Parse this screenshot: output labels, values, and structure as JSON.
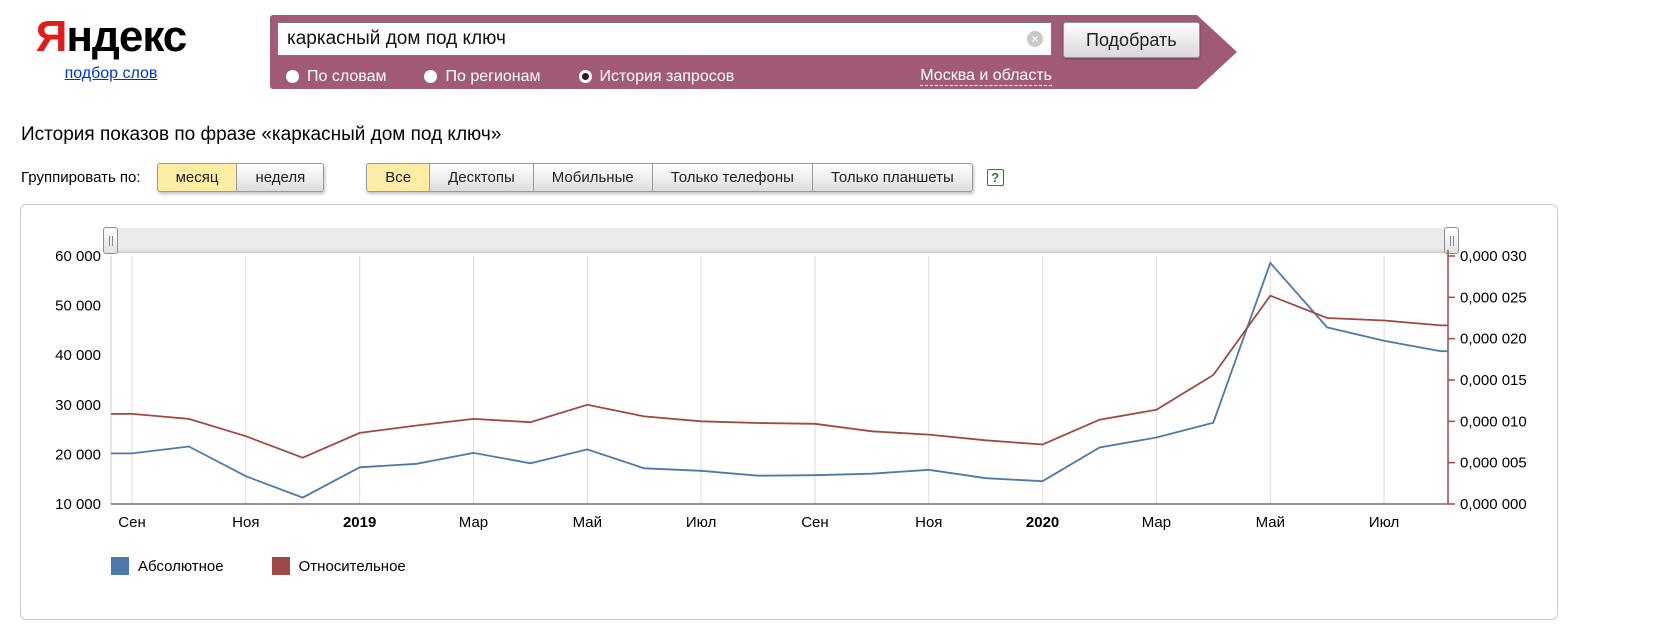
{
  "header": {
    "logo": {
      "first": "Я",
      "rest": "ндекс"
    },
    "wordstat_link": "подбор слов",
    "search": {
      "value": "каркасный дом под ключ",
      "clear_icon": "×"
    },
    "submit_label": "Подобрать",
    "modes": [
      {
        "label": "По словам",
        "selected": false
      },
      {
        "label": "По регионам",
        "selected": false
      },
      {
        "label": "История запросов",
        "selected": true
      }
    ],
    "region_link": "Москва и область"
  },
  "page": {
    "title": "История показов по фразе «каркасный дом под ключ»",
    "group_by_label": "Группировать по:",
    "group_options": [
      {
        "label": "месяц",
        "selected": true
      },
      {
        "label": "неделя",
        "selected": false
      }
    ],
    "device_tabs": [
      {
        "label": "Все",
        "selected": true
      },
      {
        "label": "Десктопы",
        "selected": false
      },
      {
        "label": "Мобильные",
        "selected": false
      },
      {
        "label": "Только телефоны",
        "selected": false
      },
      {
        "label": "Только планшеты",
        "selected": false
      }
    ],
    "help_icon": "?"
  },
  "chart_data": {
    "type": "line",
    "title": "История показов по фразе «каркасный дом под ключ»",
    "grid": "vertical",
    "x_months": [
      "Сен 2018",
      "Окт 2018",
      "Ноя 2018",
      "Дек 2018",
      "Янв 2019",
      "Фев 2019",
      "Мар 2019",
      "Апр 2019",
      "Май 2019",
      "Июн 2019",
      "Июл 2019",
      "Авг 2019",
      "Сен 2019",
      "Окт 2019",
      "Ноя 2019",
      "Дек 2019",
      "Янв 2020",
      "Фев 2020",
      "Мар 2020",
      "Апр 2020",
      "Май 2020",
      "Июн 2020",
      "Июл 2020",
      "Авг 2020"
    ],
    "x_ticks": [
      {
        "label": "Сен",
        "bold": false
      },
      {
        "label": "Ноя",
        "bold": false
      },
      {
        "label": "2019",
        "bold": true
      },
      {
        "label": "Мар",
        "bold": false
      },
      {
        "label": "Май",
        "bold": false
      },
      {
        "label": "Июл",
        "bold": false
      },
      {
        "label": "Сен",
        "bold": false
      },
      {
        "label": "Ноя",
        "bold": false
      },
      {
        "label": "2020",
        "bold": true
      },
      {
        "label": "Мар",
        "bold": false
      },
      {
        "label": "Май",
        "bold": false
      },
      {
        "label": "Июл",
        "bold": false
      }
    ],
    "series": [
      {
        "name": "Абсолютное",
        "color": "#4d7aa8",
        "axis": "left",
        "values": [
          20200,
          21600,
          15600,
          11300,
          17400,
          18100,
          20300,
          18200,
          21000,
          17200,
          16700,
          15700,
          15800,
          16100,
          16900,
          15200,
          14600,
          21400,
          23400,
          26400,
          58600,
          45600,
          42900,
          40800
        ]
      },
      {
        "name": "Относительное",
        "color": "#9e4a44",
        "axis": "right",
        "values": [
          1.09e-05,
          1.03e-05,
          8.2e-06,
          5.6e-06,
          8.6e-06,
          9.5e-06,
          1.03e-05,
          9.9e-06,
          1.2e-05,
          1.06e-05,
          1e-05,
          9.8e-06,
          9.7e-06,
          8.8e-06,
          8.4e-06,
          7.7e-06,
          7.2e-06,
          1.02e-05,
          1.14e-05,
          1.56e-05,
          2.52e-05,
          2.25e-05,
          2.22e-05,
          2.16e-05
        ]
      }
    ],
    "left_axis": {
      "min": 10000,
      "max": 60000,
      "ticks": [
        {
          "label": "60 000",
          "value": 60000
        },
        {
          "label": "50 000",
          "value": 50000
        },
        {
          "label": "40 000",
          "value": 40000
        },
        {
          "label": "30 000",
          "value": 30000
        },
        {
          "label": "20 000",
          "value": 20000
        },
        {
          "label": "10 000",
          "value": 10000
        }
      ]
    },
    "right_axis": {
      "min": 0,
      "max": 3e-05,
      "ticks": [
        {
          "label": "0,000 030",
          "value": 3e-05
        },
        {
          "label": "0,000 025",
          "value": 2.5e-05
        },
        {
          "label": "0,000 020",
          "value": 2e-05
        },
        {
          "label": "0,000 015",
          "value": 1.5e-05
        },
        {
          "label": "0,000 010",
          "value": 1e-05
        },
        {
          "label": "0,000 005",
          "value": 5e-06
        },
        {
          "label": "0,000 000",
          "value": 0
        }
      ]
    },
    "legend": [
      "Абсолютное",
      "Относительное"
    ]
  }
}
